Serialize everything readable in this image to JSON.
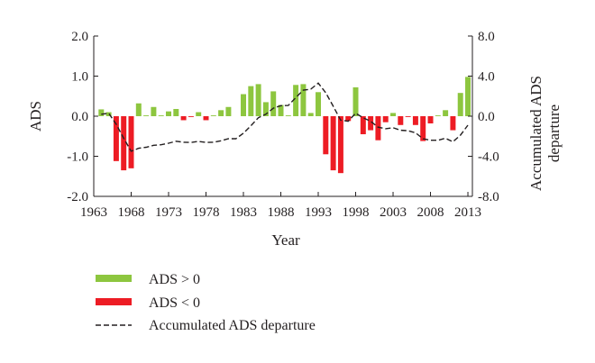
{
  "chart_data": {
    "type": "bar",
    "x": [
      1964,
      1965,
      1966,
      1967,
      1968,
      1969,
      1970,
      1971,
      1972,
      1973,
      1974,
      1975,
      1976,
      1977,
      1978,
      1979,
      1980,
      1981,
      1982,
      1983,
      1984,
      1985,
      1986,
      1987,
      1988,
      1989,
      1990,
      1991,
      1992,
      1993,
      1994,
      1995,
      1996,
      1997,
      1998,
      1999,
      2000,
      2001,
      2002,
      2003,
      2004,
      2005,
      2006,
      2007,
      2008,
      2009,
      2010,
      2011,
      2012,
      2013
    ],
    "series": [
      {
        "name": "ADS",
        "values": [
          0.17,
          0.1,
          -1.12,
          -1.35,
          -1.3,
          0.32,
          0.02,
          0.23,
          0.02,
          0.12,
          0.18,
          -0.1,
          -0.02,
          0.1,
          -0.1,
          0.02,
          0.15,
          0.23,
          0.0,
          0.55,
          0.75,
          0.8,
          0.35,
          0.62,
          0.28,
          0.02,
          0.78,
          0.8,
          0.08,
          0.6,
          -0.95,
          -1.35,
          -1.42,
          -0.12,
          0.72,
          -0.45,
          -0.35,
          -0.6,
          -0.15,
          0.08,
          -0.22,
          -0.02,
          -0.22,
          -0.62,
          -0.18,
          0.02,
          0.15,
          -0.35,
          0.58,
          0.98
        ]
      },
      {
        "name": "Accumulated ADS departure",
        "axis": "right",
        "values": [
          0.2,
          0.3,
          -0.8,
          -2.2,
          -3.5,
          -3.2,
          -3.1,
          -2.9,
          -2.85,
          -2.7,
          -2.5,
          -2.6,
          -2.62,
          -2.52,
          -2.62,
          -2.6,
          -2.45,
          -2.25,
          -2.25,
          -1.7,
          -0.95,
          -0.15,
          0.2,
          0.8,
          1.05,
          1.07,
          1.85,
          2.6,
          2.7,
          3.3,
          2.35,
          1.0,
          -0.4,
          -0.5,
          0.3,
          -0.15,
          -0.5,
          -1.1,
          -1.25,
          -1.15,
          -1.4,
          -1.45,
          -1.65,
          -2.25,
          -2.4,
          -2.4,
          -2.2,
          -2.55,
          -1.9,
          -0.9
        ]
      }
    ],
    "xlabel": "Year",
    "ylabel": "ADS",
    "y2label_lines": [
      "Accumulated ADS",
      "departure"
    ],
    "ylim": [
      -2.0,
      2.0
    ],
    "y2lim": [
      -8.0,
      8.0
    ],
    "xticks": [
      "1963",
      "1968",
      "1973",
      "1978",
      "1983",
      "1988",
      "1993",
      "1998",
      "2003",
      "2008",
      "2013"
    ],
    "yticks": [
      "-2.0",
      "-1.0",
      "0.0",
      "1.0",
      "2.0"
    ],
    "y2ticks": [
      "-8.0",
      "-4.0",
      "0.0",
      "4.0",
      "8.0"
    ],
    "legend": [
      {
        "label": "ADS > 0",
        "color": "#8dc63f",
        "kind": "bar"
      },
      {
        "label": "ADS < 0",
        "color": "#ed1c24",
        "kind": "bar"
      },
      {
        "label": "Accumulated ADS departure",
        "color": "#231f20",
        "kind": "dashed-line"
      }
    ],
    "colors": {
      "positive": "#8dc63f",
      "negative": "#ed1c24",
      "line": "#231f20"
    },
    "grid": false,
    "legend_position": "bottom-left"
  }
}
